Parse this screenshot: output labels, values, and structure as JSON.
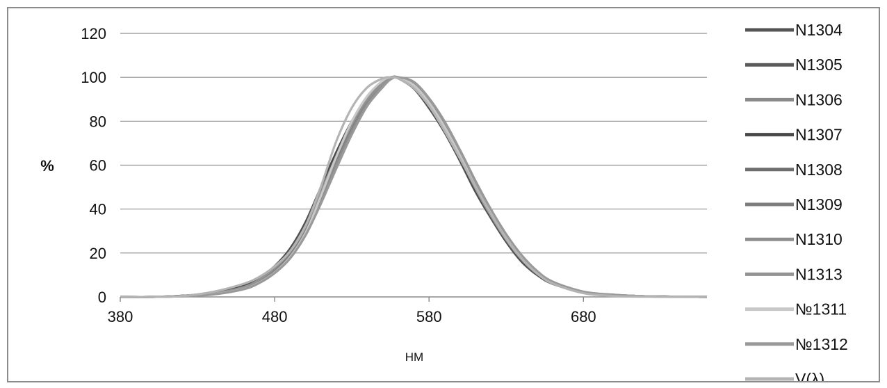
{
  "chart_data": {
    "type": "line",
    "title": "",
    "xlabel": "НМ",
    "ylabel": "%",
    "xlim": [
      380,
      760
    ],
    "ylim": [
      0,
      120
    ],
    "x_ticks": [
      380,
      480,
      580,
      680
    ],
    "y_ticks": [
      0,
      20,
      40,
      60,
      80,
      100,
      120
    ],
    "grid": "horizontal",
    "legend": "right",
    "x": [
      380,
      400,
      420,
      440,
      460,
      470,
      480,
      490,
      500,
      510,
      520,
      530,
      540,
      550,
      555,
      560,
      570,
      580,
      590,
      600,
      610,
      620,
      630,
      640,
      650,
      660,
      680,
      700,
      720,
      740,
      760
    ],
    "series": [
      {
        "name": "N1304",
        "color": "#555555",
        "values": [
          0,
          0,
          0.5,
          1.8,
          5,
          8.5,
          14,
          22,
          34,
          50,
          66,
          80,
          91,
          98,
          100,
          99.5,
          95,
          86,
          75,
          62,
          48,
          36,
          25,
          16,
          10,
          6,
          2,
          0.8,
          0.3,
          0.1,
          0
        ]
      },
      {
        "name": "N1305",
        "color": "#5a5a5a",
        "values": [
          0,
          0,
          0.4,
          1.6,
          4.6,
          8,
          13.5,
          21,
          33,
          49,
          65,
          79,
          90,
          97.5,
          99.5,
          100,
          96,
          87,
          76,
          63,
          49,
          37,
          26,
          17,
          10.5,
          6.2,
          2.1,
          0.8,
          0.3,
          0.1,
          0
        ]
      },
      {
        "name": "N1306",
        "color": "#8a8a8a",
        "values": [
          0,
          0,
          0.3,
          1.3,
          4,
          7,
          12,
          19,
          30,
          45,
          61,
          76,
          88,
          96.5,
          99.5,
          100,
          97,
          89,
          78,
          65,
          51,
          38,
          27,
          18,
          11,
          6.5,
          2.2,
          0.9,
          0.3,
          0.1,
          0
        ]
      },
      {
        "name": "N1307",
        "color": "#4a4a4a",
        "values": [
          0,
          0,
          0.5,
          1.7,
          4.8,
          8.2,
          13.8,
          21.5,
          33.5,
          49.5,
          65.5,
          79.5,
          90.5,
          97.8,
          100,
          99.6,
          95.5,
          86.5,
          75.5,
          62.5,
          48.5,
          36.5,
          25.5,
          16.5,
          10.2,
          6.1,
          2.1,
          0.8,
          0.3,
          0.1,
          0
        ]
      },
      {
        "name": "N1308",
        "color": "#6e6e6e",
        "values": [
          0,
          0,
          0.4,
          1.5,
          4.4,
          7.8,
          13,
          20.5,
          32,
          47.5,
          63.5,
          78,
          89.5,
          97,
          99.8,
          100,
          96.5,
          88,
          77,
          64,
          50,
          37.5,
          26.5,
          17.5,
          10.8,
          6.4,
          2.2,
          0.9,
          0.3,
          0.1,
          0
        ]
      },
      {
        "name": "N1309",
        "color": "#7c7c7c",
        "values": [
          0,
          0,
          0.4,
          1.4,
          4.2,
          7.4,
          12.5,
          20,
          31,
          46.5,
          62.5,
          77,
          89,
          96.8,
          99.6,
          100,
          96.8,
          88.5,
          77.5,
          64.5,
          50.5,
          38,
          27,
          17.8,
          11,
          6.5,
          2.2,
          0.9,
          0.3,
          0.1,
          0
        ]
      },
      {
        "name": "N1310",
        "color": "#8e8e8e",
        "values": [
          0,
          0,
          0.3,
          1.2,
          3.8,
          6.8,
          11.5,
          18.5,
          29.5,
          44.5,
          60.5,
          75.5,
          88,
          96.2,
          99.4,
          100,
          97.2,
          89.5,
          78.5,
          65.5,
          51.5,
          39,
          27.5,
          18.2,
          11.2,
          6.6,
          2.3,
          0.9,
          0.3,
          0.1,
          0
        ]
      },
      {
        "name": "N1313",
        "color": "#939393",
        "values": [
          0,
          0,
          0.4,
          1.5,
          4.5,
          7.9,
          13.2,
          20.8,
          32.5,
          48,
          64,
          78.5,
          90,
          97.2,
          99.8,
          99.8,
          96,
          87.5,
          76.5,
          63.5,
          49.5,
          37,
          26,
          17,
          10.5,
          6.3,
          2.1,
          0.8,
          0.3,
          0.1,
          0
        ]
      },
      {
        "name": "№1311",
        "color": "#c8c8c8",
        "values": [
          0,
          0,
          0.3,
          1.2,
          3.6,
          6.5,
          11,
          18,
          29,
          46,
          64,
          80,
          91.5,
          98.5,
          100,
          99.5,
          96.5,
          88.5,
          77.5,
          64.5,
          50.5,
          38,
          27,
          17.8,
          11,
          6.5,
          2.2,
          0.9,
          0.3,
          0.1,
          0
        ]
      },
      {
        "name": "№1312",
        "color": "#999999",
        "values": [
          0,
          0,
          0.3,
          1.1,
          3.5,
          6.3,
          10.8,
          17.5,
          28,
          42.5,
          58.5,
          74,
          87,
          95.5,
          99,
          100,
          98,
          90.5,
          80,
          67,
          53,
          40,
          28.5,
          19,
          11.8,
          7,
          2.4,
          1,
          0.3,
          0.1,
          0
        ]
      },
      {
        "name": "V(λ)",
        "color": "#b4b4b4",
        "values": [
          0,
          0,
          0.4,
          2.3,
          6,
          9.1,
          13.9,
          20.8,
          32.3,
          50.3,
          71,
          86.2,
          95.4,
          99.5,
          100,
          99.5,
          95.2,
          87,
          75.7,
          63.1,
          50.3,
          38.1,
          26.5,
          17.5,
          10.7,
          6.1,
          1.7,
          0.4,
          0.1,
          0,
          0
        ]
      }
    ]
  }
}
